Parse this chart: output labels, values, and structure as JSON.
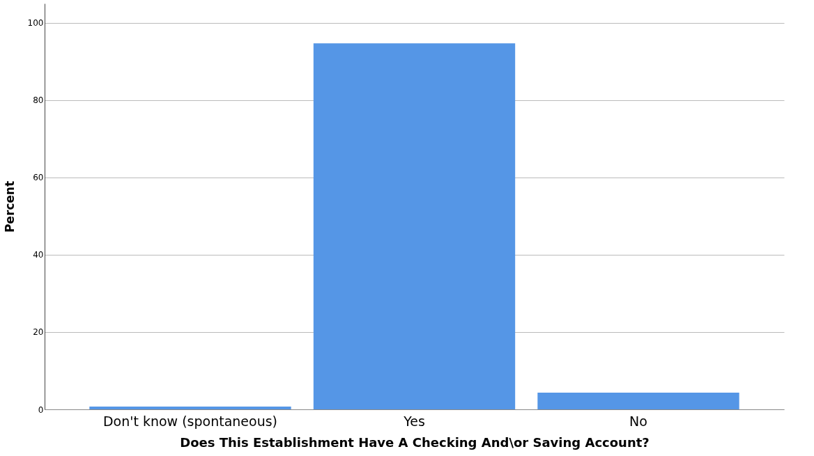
{
  "chart_data": {
    "type": "bar",
    "xlabel": "Does This Establishment Have A Checking And\\or Saving Account?",
    "ylabel": "Percent",
    "categories": [
      "Don't know (spontaneous)",
      "Yes",
      "No"
    ],
    "values": [
      0.7,
      94.7,
      4.3
    ],
    "color": "#5596e6",
    "ylim": [
      0,
      105
    ],
    "yticks": [
      0,
      20,
      40,
      60,
      80,
      100
    ],
    "grid": "y"
  }
}
